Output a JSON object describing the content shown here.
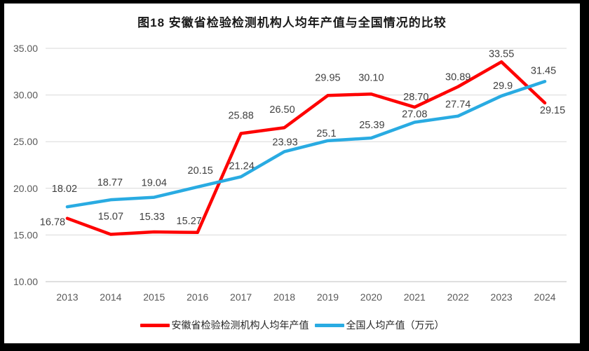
{
  "frame": {
    "background": "#000000",
    "chart_background": "#ffffff"
  },
  "chart_data": {
    "type": "line",
    "title": "图18 安徽省检验检测机构人均年产值与全国情况的比较",
    "categories": [
      "2013",
      "2014",
      "2015",
      "2016",
      "2017",
      "2018",
      "2019",
      "2020",
      "2021",
      "2022",
      "2023",
      "2024"
    ],
    "series": [
      {
        "name": "安徽省检验检测机构人均年产值",
        "color": "#FE0000",
        "values": [
          16.78,
          15.07,
          15.33,
          15.27,
          25.88,
          26.5,
          29.95,
          30.1,
          28.7,
          30.89,
          33.55,
          29.15
        ],
        "labels": [
          "16.78",
          "15.07",
          "15.33",
          "15.27",
          "25.88",
          "26.50",
          "29.95",
          "30.10",
          "28.70",
          "30.89",
          "33.55",
          "29.15"
        ],
        "label_offsets": [
          [
            -21,
            5
          ],
          [
            0,
            -26
          ],
          [
            -3,
            -22
          ],
          [
            -12,
            -17
          ],
          [
            0,
            -26
          ],
          [
            -3,
            -26
          ],
          [
            0,
            -26
          ],
          [
            0,
            -24
          ],
          [
            2,
            -15
          ],
          [
            0,
            -14
          ],
          [
            0,
            -12
          ],
          [
            11,
            10
          ]
        ]
      },
      {
        "name": "全国人均产值（万元）",
        "color": "#29ABE2",
        "values": [
          18.02,
          18.77,
          19.04,
          20.15,
          21.24,
          23.93,
          25.1,
          25.39,
          27.08,
          27.74,
          29.9,
          31.45
        ],
        "labels": [
          "18.02",
          "18.77",
          "19.04",
          "20.15",
          "21.24",
          "23.93",
          "25.1",
          "25.39",
          "27.08",
          "27.74",
          "29.9",
          "31.45"
        ],
        "label_offsets": [
          [
            -4,
            -26
          ],
          [
            -1,
            -25
          ],
          [
            0,
            -21
          ],
          [
            4,
            -24
          ],
          [
            1,
            -16
          ],
          [
            1,
            -14
          ],
          [
            -2,
            -11
          ],
          [
            1,
            -19
          ],
          [
            0,
            -12
          ],
          [
            0,
            -17
          ],
          [
            2,
            -15
          ],
          [
            -2,
            -16
          ]
        ]
      }
    ],
    "y_axis": {
      "min": 10,
      "max": 35,
      "step": 5,
      "tick_labels": [
        "10.00",
        "15.00",
        "20.00",
        "25.00",
        "30.00",
        "35.00"
      ]
    },
    "grid": true,
    "legend_position": "bottom",
    "style": {
      "gridline_color": "#D9D9D9",
      "axis_line_color": "#BFBFBF",
      "tick_label_color": "#595959",
      "data_label_color": "#404040",
      "line_width": 4.5
    }
  }
}
